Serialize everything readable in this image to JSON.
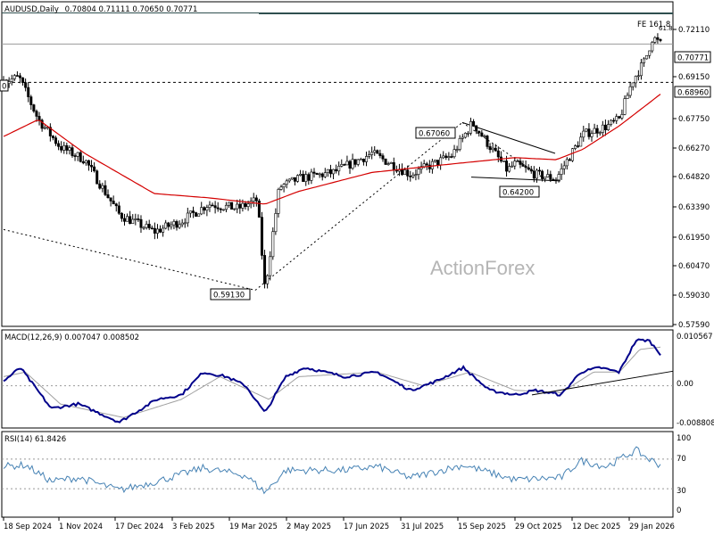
{
  "header": {
    "symbol": "AUDUSD,Daily",
    "ohlc": "0.70804 0.71111 0.70650 0.70771"
  },
  "watermark": "ActionForex",
  "colors": {
    "candle": "#000000",
    "ma": "#d40000",
    "macd": "#00008b",
    "signal": "#a0a0a0",
    "rsi": "#4682b4",
    "trend": "#000000",
    "fe_line": "#2f4f4f"
  },
  "chart_data": [
    {
      "type": "candlestick",
      "title": "AUDUSD,Daily",
      "ylim": [
        0.5759,
        0.726
      ],
      "y_ticks": [
        "0.72110",
        "0.69150",
        "0.67750",
        "0.66270",
        "0.64820",
        "0.63390",
        "0.61950",
        "0.60470",
        "0.59030",
        "0.57590"
      ],
      "price_labels": {
        "current": "0.70771",
        "line": "0.68960",
        "fe": "FE 161.8",
        "fe_right": "61.8"
      },
      "annotations": {
        "low": "0.59130",
        "mid_high": "0.67060",
        "mid_low": "0.64200",
        "left": "0"
      },
      "key_closes": [
        [
          "2024-09-18",
          0.69
        ],
        [
          "2024-09-30",
          0.692
        ],
        [
          "2024-10-15",
          0.672
        ],
        [
          "2024-11-01",
          0.659
        ],
        [
          "2024-11-20",
          0.653
        ],
        [
          "2024-12-17",
          0.627
        ],
        [
          "2025-01-13",
          0.619
        ],
        [
          "2025-02-03",
          0.624
        ],
        [
          "2025-02-24",
          0.632
        ],
        [
          "2025-03-19",
          0.63
        ],
        [
          "2025-04-03",
          0.634
        ],
        [
          "2025-04-09",
          0.5913
        ],
        [
          "2025-04-20",
          0.64
        ],
        [
          "2025-05-05",
          0.644
        ],
        [
          "2025-06-01",
          0.647
        ],
        [
          "2025-07-01",
          0.656
        ],
        [
          "2025-07-31",
          0.646
        ],
        [
          "2025-09-01",
          0.655
        ],
        [
          "2025-09-17",
          0.6706
        ],
        [
          "2025-10-14",
          0.648
        ],
        [
          "2025-10-20",
          0.651
        ],
        [
          "2025-11-05",
          0.646
        ],
        [
          "2025-11-21",
          0.644
        ],
        [
          "2025-12-01",
          0.654
        ],
        [
          "2025-12-12",
          0.665
        ],
        [
          "2025-12-31",
          0.669
        ],
        [
          "2026-01-09",
          0.672
        ],
        [
          "2026-01-19",
          0.69
        ],
        [
          "2026-01-29",
          0.7
        ],
        [
          "2026-02-04",
          0.711
        ],
        [
          "2026-02-10",
          0.7077
        ]
      ],
      "ma_key": [
        [
          "2024-09-18",
          0.664
        ],
        [
          "2024-10-15",
          0.672
        ],
        [
          "2024-11-20",
          0.656
        ],
        [
          "2025-01-13",
          0.637
        ],
        [
          "2025-02-24",
          0.635
        ],
        [
          "2025-04-09",
          0.632
        ],
        [
          "2025-05-05",
          0.638
        ],
        [
          "2025-07-01",
          0.647
        ],
        [
          "2025-09-01",
          0.651
        ],
        [
          "2025-10-20",
          0.654
        ],
        [
          "2025-11-21",
          0.653
        ],
        [
          "2025-12-12",
          0.658
        ],
        [
          "2026-01-09",
          0.669
        ],
        [
          "2026-02-10",
          0.684
        ]
      ]
    },
    {
      "type": "line",
      "title": "MACD(12,26,9) 0.007047 0.008502",
      "ylim": [
        -0.0089,
        0.0115
      ],
      "y_ticks": [
        "0.010567",
        "0.00",
        "-0.008808"
      ],
      "macd_key": [
        [
          "2024-09-18",
          0.001
        ],
        [
          "2024-10-01",
          0.004
        ],
        [
          "2024-10-25",
          -0.005
        ],
        [
          "2024-11-15",
          -0.004
        ],
        [
          "2024-12-17",
          -0.008
        ],
        [
          "2025-01-15",
          -0.003
        ],
        [
          "2025-02-03",
          -0.002
        ],
        [
          "2025-02-20",
          0.003
        ],
        [
          "2025-03-10",
          0.002
        ],
        [
          "2025-03-25",
          0.0
        ],
        [
          "2025-04-09",
          -0.006
        ],
        [
          "2025-04-25",
          0.002
        ],
        [
          "2025-05-10",
          0.004
        ],
        [
          "2025-06-10",
          0.002
        ],
        [
          "2025-07-05",
          0.003
        ],
        [
          "2025-07-31",
          -0.001
        ],
        [
          "2025-08-20",
          0.001
        ],
        [
          "2025-09-10",
          0.004
        ],
        [
          "2025-09-30",
          -0.001
        ],
        [
          "2025-10-20",
          -0.002
        ],
        [
          "2025-11-05",
          -0.001
        ],
        [
          "2025-11-25",
          -0.002
        ],
        [
          "2025-12-10",
          0.003
        ],
        [
          "2025-12-25",
          0.004
        ],
        [
          "2026-01-09",
          0.003
        ],
        [
          "2026-01-22",
          0.01
        ],
        [
          "2026-02-01",
          0.01
        ],
        [
          "2026-02-10",
          0.007
        ]
      ],
      "signal_key": [
        [
          "2024-09-18",
          0.002
        ],
        [
          "2024-10-05",
          0.003
        ],
        [
          "2024-11-01",
          -0.004
        ],
        [
          "2024-12-20",
          -0.007
        ],
        [
          "2025-02-03",
          -0.003
        ],
        [
          "2025-03-05",
          0.002
        ],
        [
          "2025-04-12",
          -0.003
        ],
        [
          "2025-05-05",
          0.002
        ],
        [
          "2025-07-05",
          0.003
        ],
        [
          "2025-08-10",
          0.0
        ],
        [
          "2025-09-15",
          0.003
        ],
        [
          "2025-10-20",
          -0.001
        ],
        [
          "2025-11-25",
          -0.0015
        ],
        [
          "2025-12-20",
          0.003
        ],
        [
          "2026-01-09",
          0.003
        ],
        [
          "2026-01-25",
          0.008
        ],
        [
          "2026-02-10",
          0.0085
        ]
      ]
    },
    {
      "type": "line",
      "title": "RSI(14) 61.8426",
      "ylim": [
        0,
        100
      ],
      "y_ticks": [
        "100",
        "70",
        "30",
        "0"
      ],
      "rsi_key": [
        [
          "2024-09-18",
          60
        ],
        [
          "2024-10-05",
          62
        ],
        [
          "2024-10-25",
          40
        ],
        [
          "2024-11-15",
          45
        ],
        [
          "2024-12-17",
          28
        ],
        [
          "2025-01-15",
          40
        ],
        [
          "2025-02-20",
          58
        ],
        [
          "2025-03-25",
          48
        ],
        [
          "2025-04-09",
          25
        ],
        [
          "2025-04-25",
          55
        ],
        [
          "2025-06-10",
          55
        ],
        [
          "2025-07-05",
          60
        ],
        [
          "2025-07-31",
          45
        ],
        [
          "2025-09-10",
          62
        ],
        [
          "2025-10-20",
          42
        ],
        [
          "2025-11-25",
          45
        ],
        [
          "2025-12-10",
          68
        ],
        [
          "2025-12-30",
          60
        ],
        [
          "2026-01-22",
          82
        ],
        [
          "2026-02-01",
          70
        ],
        [
          "2026-02-10",
          62
        ]
      ]
    }
  ],
  "x_axis": {
    "labels": [
      "18 Sep 2024",
      "1 Nov 2024",
      "17 Dec 2024",
      "3 Feb 2025",
      "19 Mar 2025",
      "2 May 2025",
      "17 Jun 2025",
      "31 Jul 2025",
      "15 Sep 2025",
      "29 Oct 2025",
      "12 Dec 2025",
      "29 Jan 2026"
    ],
    "start": "2024-09-18",
    "end": "2026-02-10"
  }
}
